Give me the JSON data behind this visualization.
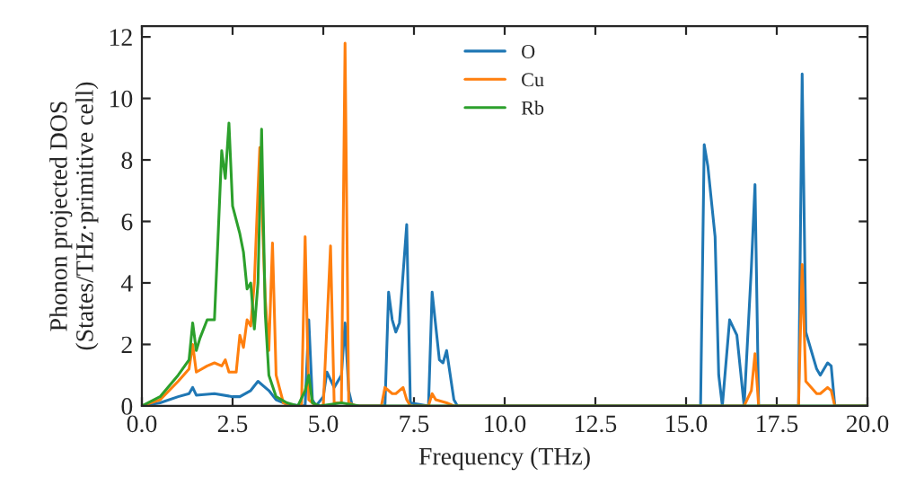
{
  "chart_data": {
    "type": "line",
    "xlabel": "Frequency (THz)",
    "ylabel": "Phonon projected DOS\n(States/THz·primitive cell)",
    "xlim": [
      0,
      20
    ],
    "ylim": [
      0,
      12.35
    ],
    "xticks": [
      {
        "value": 0,
        "label": "0.0"
      },
      {
        "value": 2.5,
        "label": "2.5"
      },
      {
        "value": 5,
        "label": "5.0"
      },
      {
        "value": 7.5,
        "label": "7.5"
      },
      {
        "value": 10,
        "label": "10.0"
      },
      {
        "value": 12.5,
        "label": "12.5"
      },
      {
        "value": 15,
        "label": "15.0"
      },
      {
        "value": 17.5,
        "label": "17.5"
      },
      {
        "value": 20,
        "label": "20.0"
      }
    ],
    "yticks": [
      0,
      2,
      4,
      6,
      8,
      10,
      12
    ],
    "legend": "top",
    "grid": false,
    "marker": "none",
    "line_style": "solid",
    "series": [
      {
        "name": "O",
        "color": "#1f77b4",
        "x": [
          0,
          0.5,
          1.0,
          1.3,
          1.4,
          1.5,
          2.0,
          2.5,
          2.7,
          3.0,
          3.2,
          3.5,
          3.7,
          4.0,
          4.5,
          4.6,
          4.7,
          4.8,
          5.0,
          5.1,
          5.3,
          5.5,
          5.6,
          5.7,
          5.8,
          6.7,
          6.8,
          6.9,
          7.0,
          7.1,
          7.3,
          7.4,
          7.9,
          8.0,
          8.2,
          8.3,
          8.4,
          8.6,
          8.7,
          15.4,
          15.5,
          15.6,
          15.8,
          15.9,
          16.0,
          16.2,
          16.4,
          16.6,
          16.8,
          16.9,
          17.0,
          18.1,
          18.2,
          18.3,
          18.6,
          18.7,
          18.9,
          19.0,
          19.1,
          20
        ],
        "values": [
          0,
          0.1,
          0.3,
          0.4,
          0.6,
          0.35,
          0.4,
          0.3,
          0.3,
          0.5,
          0.8,
          0.5,
          0.2,
          0.05,
          0,
          2.8,
          0.2,
          0,
          0.3,
          1.1,
          0.6,
          1.0,
          2.7,
          0.5,
          0,
          0,
          3.7,
          2.8,
          2.4,
          2.7,
          5.9,
          0.1,
          0,
          3.7,
          1.5,
          1.4,
          1.8,
          0.2,
          0,
          0,
          8.5,
          7.8,
          5.5,
          1.0,
          0,
          2.8,
          2.3,
          0,
          4.5,
          7.2,
          0,
          0,
          10.8,
          2.4,
          1.2,
          1.0,
          1.4,
          1.3,
          0,
          0
        ]
      },
      {
        "name": "Cu",
        "color": "#ff7f0e",
        "x": [
          0,
          0.5,
          1.0,
          1.3,
          1.4,
          1.5,
          1.8,
          2.0,
          2.2,
          2.3,
          2.4,
          2.6,
          2.7,
          2.8,
          2.9,
          3.0,
          3.1,
          3.2,
          3.25,
          3.4,
          3.5,
          3.6,
          3.7,
          3.9,
          4.2,
          4.4,
          4.5,
          4.6,
          4.8,
          5.0,
          5.2,
          5.3,
          5.5,
          5.6,
          5.7,
          5.9,
          6.6,
          6.7,
          6.9,
          7.0,
          7.2,
          7.3,
          7.4,
          7.9,
          8.0,
          8.1,
          8.4,
          8.6,
          16.6,
          16.8,
          16.9,
          17.0,
          18.1,
          18.2,
          18.3,
          18.6,
          18.7,
          18.9,
          19.0,
          19.1,
          20
        ],
        "values": [
          0,
          0.2,
          0.8,
          1.2,
          2.0,
          1.1,
          1.3,
          1.4,
          1.3,
          1.5,
          1.1,
          1.1,
          2.3,
          1.9,
          2.8,
          2.6,
          4.0,
          7.0,
          8.4,
          3.5,
          1.8,
          5.3,
          1.0,
          0.1,
          0,
          0,
          5.5,
          0.2,
          0,
          0,
          5.2,
          0.1,
          0.1,
          11.8,
          0.1,
          0,
          0,
          0.6,
          0.4,
          0.4,
          0.6,
          0.2,
          0,
          0,
          0.4,
          0.2,
          0.1,
          0,
          0,
          0.5,
          1.7,
          0,
          0,
          4.6,
          0.8,
          0.4,
          0.4,
          0.6,
          0.5,
          0,
          0
        ]
      },
      {
        "name": "Rb",
        "color": "#2ca02c",
        "x": [
          0,
          0.5,
          1.0,
          1.3,
          1.4,
          1.5,
          1.6,
          1.8,
          2.0,
          2.1,
          2.2,
          2.3,
          2.4,
          2.5,
          2.7,
          2.8,
          2.9,
          3.0,
          3.1,
          3.2,
          3.3,
          3.4,
          3.5,
          3.7,
          4.0,
          4.3,
          4.5,
          4.6,
          4.7,
          4.9,
          5.5,
          6.0,
          20
        ],
        "values": [
          0,
          0.3,
          1.0,
          1.5,
          2.7,
          1.8,
          2.2,
          2.8,
          2.8,
          5.5,
          8.3,
          7.4,
          9.2,
          6.5,
          5.6,
          5.0,
          3.8,
          4.0,
          2.5,
          4.0,
          9.0,
          3.0,
          1.0,
          0.3,
          0.1,
          0,
          0.5,
          1.0,
          0.1,
          0,
          0.1,
          0,
          0
        ]
      }
    ]
  }
}
